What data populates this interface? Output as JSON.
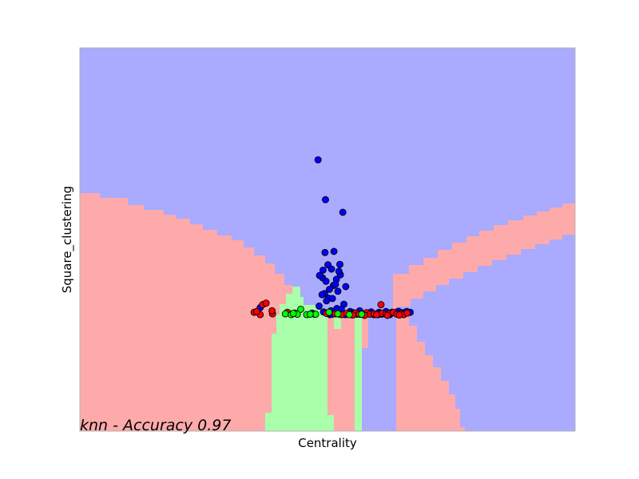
{
  "chart_data": {
    "type": "scatter",
    "title": "knn - Accuracy 0.97",
    "xlabel": "Centrality",
    "ylabel": "Square_clustering",
    "xlim": [
      0,
      100
    ],
    "ylim": [
      0,
      100
    ],
    "xticks": [],
    "yticks": [],
    "grid": false,
    "legend": "none",
    "background": "decision-regions",
    "colors": {
      "region_blue": "#aaaaff",
      "region_red": "#ffaaaa",
      "region_green": "#aaffaa",
      "point_blue": "#0000ff",
      "point_red": "#ff0000",
      "point_green": "#00ff00",
      "point_edge": "#000000"
    },
    "series": [
      {
        "color": "#0000ff",
        "x": [
          48.1,
          49.6,
          53.1,
          49.5,
          51.3,
          52.5,
          49.1,
          52.6,
          49.0,
          50.1,
          50.8,
          52.3,
          48.4,
          49.7,
          51.8,
          51.2,
          53.7,
          49.4,
          51.6,
          50.4,
          48.9,
          52.1,
          50.2,
          51.0,
          49.8,
          53.3,
          48.3,
          50.7,
          51.9,
          49.2,
          52.8,
          54.6,
          55.2,
          56.5,
          57.8,
          58.8,
          60.4,
          61.8,
          63.0,
          64.3,
          65.2,
          66.0,
          66.7,
          53.9,
          52.4,
          50.5,
          49.9,
          51.5,
          50.9,
          54.2,
          55.9,
          58.1,
          60.9,
          62.6,
          64.7,
          36.4,
          46.9,
          53.6,
          56.8,
          59.4
        ],
        "y": [
          70.8,
          60.4,
          57.1,
          46.6,
          46.9,
          43.5,
          42.0,
          40.8,
          40.0,
          43.4,
          42.3,
          41.7,
          40.6,
          39.1,
          39.6,
          38.0,
          37.7,
          35.9,
          38.3,
          37.0,
          35.6,
          36.5,
          34.7,
          34.6,
          34.0,
          33.1,
          32.6,
          31.4,
          32.0,
          31.1,
          31.8,
          31.2,
          30.9,
          31.4,
          30.8,
          31.1,
          31.0,
          31.2,
          31.0,
          31.3,
          30.9,
          31.2,
          31.0,
          30.6,
          30.5,
          30.4,
          30.8,
          30.6,
          30.5,
          30.6,
          30.5,
          30.6,
          30.5,
          30.4,
          30.6,
          32.2,
          30.8,
          30.4,
          30.5,
          30.4
        ]
      },
      {
        "color": "#ff0000",
        "x": [
          35.2,
          36.4,
          38.9,
          36.9,
          37.6,
          38.8,
          35.7,
          41.9,
          43.4,
          47.4,
          49.8,
          51.6,
          52.8,
          53.9,
          54.9,
          55.6,
          56.4,
          57.2,
          57.9,
          58.6,
          59.4,
          60.2,
          61.0,
          61.8,
          62.4,
          63.3,
          64.0,
          64.8,
          65.4,
          66.1,
          55.1,
          57.5,
          59.9,
          62.1,
          64.5,
          60.8
        ],
        "y": [
          31.0,
          30.4,
          30.6,
          33.0,
          33.4,
          31.4,
          31.2,
          31.0,
          30.8,
          30.5,
          30.7,
          30.6,
          30.4,
          30.7,
          30.5,
          30.8,
          30.5,
          30.6,
          30.9,
          30.5,
          30.6,
          30.4,
          30.7,
          30.5,
          30.6,
          31.0,
          30.5,
          30.6,
          30.4,
          30.8,
          30.3,
          30.2,
          30.4,
          30.2,
          30.3,
          33.0
        ]
      },
      {
        "color": "#00ff00",
        "x": [
          41.5,
          42.7,
          43.9,
          44.6,
          45.8,
          47.6,
          50.3,
          52.1,
          54.4,
          56.9,
          43.1,
          46.5
        ],
        "y": [
          30.6,
          30.4,
          30.5,
          31.8,
          30.4,
          30.5,
          31.0,
          30.6,
          30.4,
          30.5,
          30.7,
          30.5
        ]
      }
    ]
  }
}
